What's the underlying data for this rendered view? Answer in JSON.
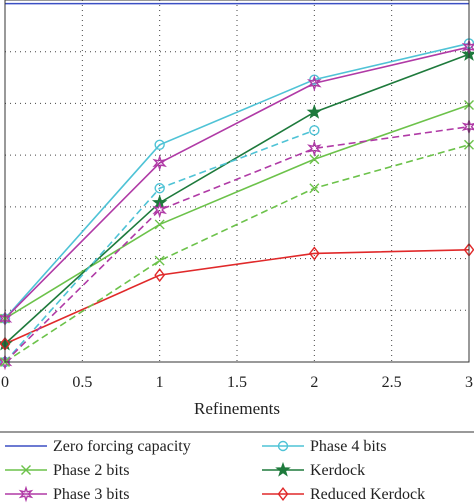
{
  "chart_data": {
    "type": "line",
    "title": "",
    "xlabel": "Refinements",
    "ylabel": "",
    "xlim": [
      0,
      3
    ],
    "ylim": [
      0,
      1
    ],
    "xticks": [
      0,
      0.5,
      1,
      1.5,
      2,
      2.5,
      3
    ],
    "xtick_labels": [
      "0",
      "0.5",
      "1",
      "1.5",
      "2",
      "2.5",
      "3"
    ],
    "grid": true,
    "legend_position": "bottom",
    "series": [
      {
        "name": "Zero forcing capacity",
        "color": "#3b4fc4",
        "dash": "solid",
        "marker": "none",
        "x": [
          0,
          1,
          2,
          3
        ],
        "y": [
          0.99,
          0.99,
          0.99,
          0.99
        ]
      },
      {
        "name": "Phase 4 bits",
        "color": "#4fc3d6",
        "dash": "solid",
        "marker": "circle",
        "x": [
          0,
          1,
          2,
          3
        ],
        "y": [
          0.12,
          0.6,
          0.78,
          0.88
        ]
      },
      {
        "name": "Phase 2 bits",
        "color": "#6cc24a",
        "dash": "solid",
        "marker": "x",
        "x": [
          0,
          1,
          2,
          3
        ],
        "y": [
          0.12,
          0.38,
          0.56,
          0.71
        ]
      },
      {
        "name": "Kerdock",
        "color": "#1e7a3c",
        "dash": "solid",
        "marker": "star",
        "x": [
          0,
          1,
          2,
          3
        ],
        "y": [
          0.05,
          0.44,
          0.69,
          0.85
        ]
      },
      {
        "name": "Phase 3 bits",
        "color": "#b03aa6",
        "dash": "solid",
        "marker": "star6",
        "x": [
          0,
          1,
          2,
          3
        ],
        "y": [
          0.12,
          0.55,
          0.77,
          0.87
        ]
      },
      {
        "name": "Reduced Kerdock",
        "color": "#e0292a",
        "dash": "solid",
        "marker": "diamond",
        "x": [
          0,
          1,
          2,
          3
        ],
        "y": [
          0.05,
          0.24,
          0.3,
          0.31
        ]
      },
      {
        "name": "",
        "color": "#4fc3d6",
        "dash": "dashed",
        "marker": "circle",
        "x": [
          0,
          1,
          2
        ],
        "y": [
          0.0,
          0.48,
          0.64
        ]
      },
      {
        "name": "",
        "color": "#b03aa6",
        "dash": "dashed",
        "marker": "star6",
        "x": [
          0,
          1,
          2,
          3
        ],
        "y": [
          0.0,
          0.42,
          0.59,
          0.65
        ]
      },
      {
        "name": "",
        "color": "#6cc24a",
        "dash": "dashed",
        "marker": "x",
        "x": [
          0,
          1,
          2,
          3
        ],
        "y": [
          0.0,
          0.28,
          0.48,
          0.6
        ]
      }
    ],
    "legend": [
      {
        "label": "Zero forcing capacity",
        "color": "#3b4fc4",
        "marker": "none"
      },
      {
        "label": "Phase 4 bits",
        "color": "#4fc3d6",
        "marker": "circle"
      },
      {
        "label": "Phase 2 bits",
        "color": "#6cc24a",
        "marker": "x"
      },
      {
        "label": "Kerdock",
        "color": "#1e7a3c",
        "marker": "star"
      },
      {
        "label": "Phase 3 bits",
        "color": "#b03aa6",
        "marker": "star6"
      },
      {
        "label": "Reduced Kerdock",
        "color": "#e0292a",
        "marker": "diamond"
      }
    ]
  }
}
